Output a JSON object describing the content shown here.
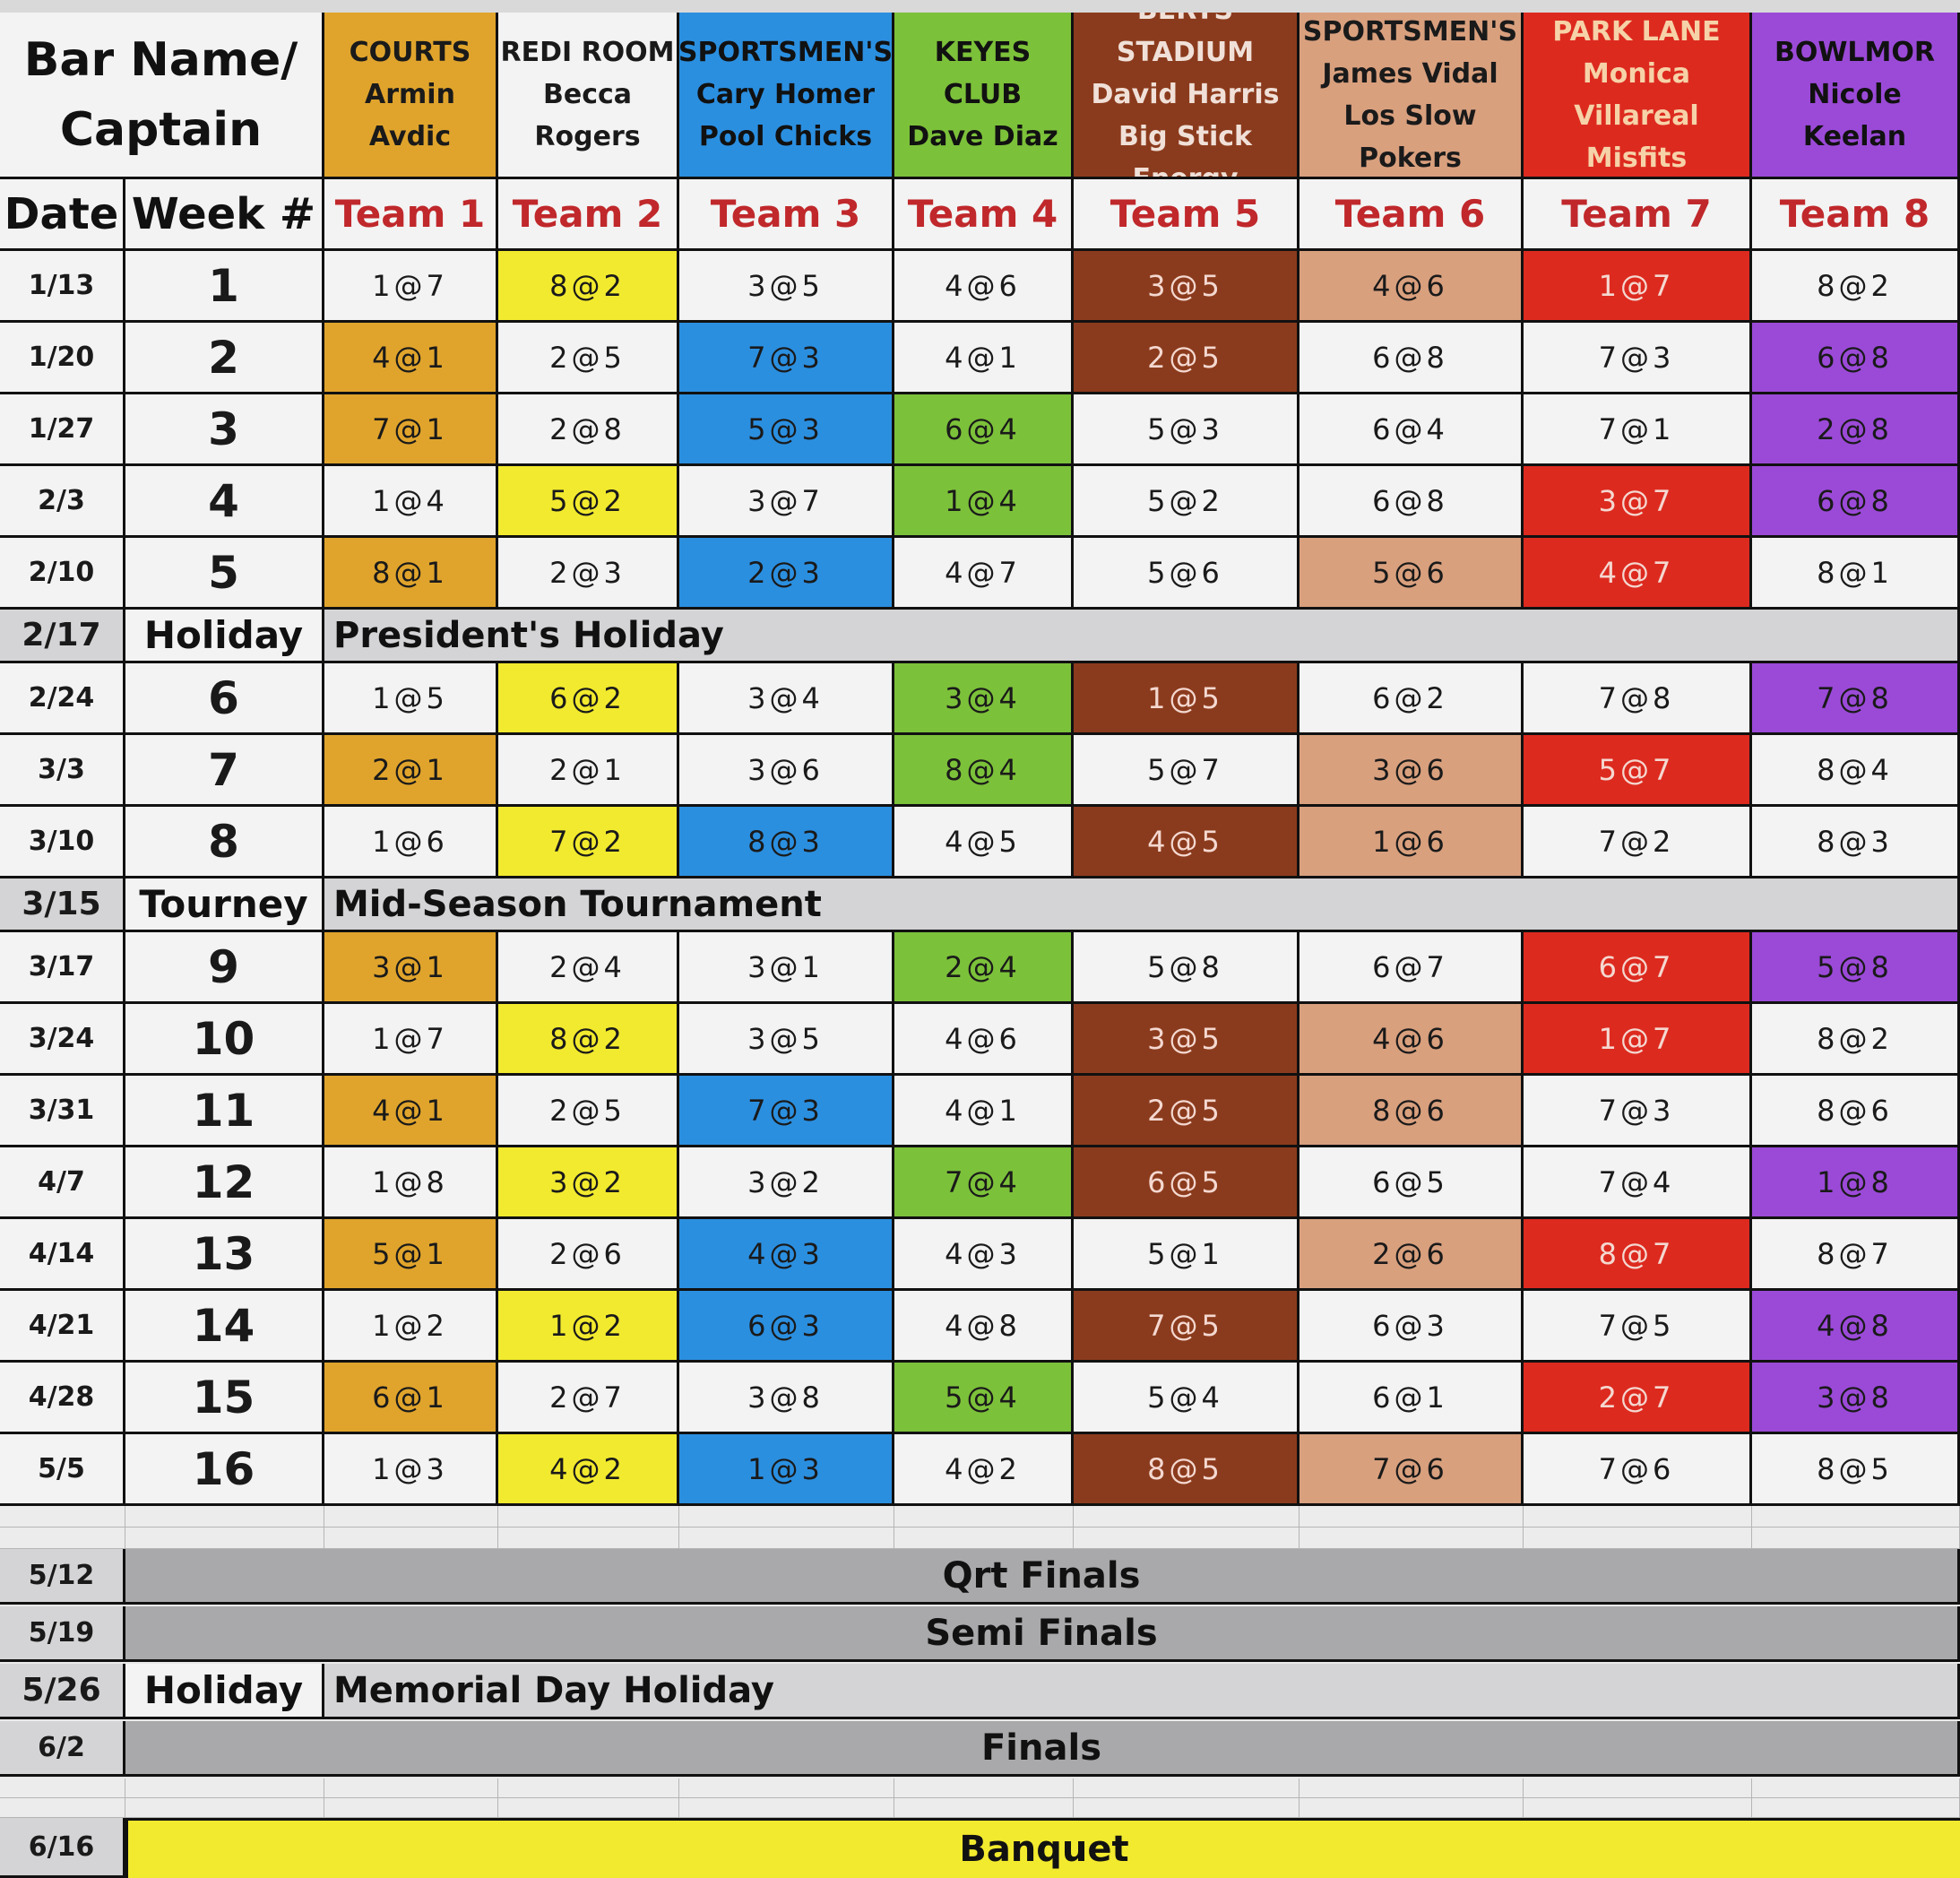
{
  "header": {
    "corner_title_line1": "Bar Name/",
    "corner_title_line2": "Captain",
    "date_label": "Date",
    "week_label": "Week #"
  },
  "teams": [
    {
      "lines": [
        "COURTS",
        "Armin Avdic"
      ],
      "label": "Team 1",
      "header_color": "#e0a42c",
      "header_text_color": "#1a1a1a",
      "cell_color": "#e0a42c"
    },
    {
      "lines": [
        "REDI ROOM",
        "Becca",
        "Rogers"
      ],
      "label": "Team 2",
      "header_color": "#f3f3f3",
      "header_text_color": "#1a1a1a",
      "cell_color": "#f2ea2e"
    },
    {
      "lines": [
        "SPORTSMEN'S",
        "Cary Homer",
        "Pool Chicks"
      ],
      "label": "Team 3",
      "header_color": "#2b8fe0",
      "header_text_color": "#111111",
      "cell_color": "#2b8fe0"
    },
    {
      "lines": [
        "KEYES CLUB",
        "Dave Diaz"
      ],
      "label": "Team 4",
      "header_color": "#7cc13a",
      "header_text_color": "#111111",
      "cell_color": "#7cc13a"
    },
    {
      "lines": [
        "BERTS STADIUM",
        "David Harris",
        "Big Stick Energy"
      ],
      "label": "Team 5",
      "header_color": "#8b3b1d",
      "header_text_color": "#f0e0d8",
      "cell_color": "#8b3b1d"
    },
    {
      "lines": [
        "SPORTSMEN'S",
        "James Vidal",
        "Los Slow Pokers"
      ],
      "label": "Team 6",
      "header_color": "#d9a07e",
      "header_text_color": "#1a1a1a",
      "cell_color": "#d9a07e"
    },
    {
      "lines": [
        "PARK LANE",
        "Monica Villareal",
        "Misfits"
      ],
      "label": "Team 7",
      "header_color": "#dd2a1f",
      "header_text_color": "#f6d2a8",
      "cell_color": "#dd2a1f"
    },
    {
      "lines": [
        "BOWLMOR",
        "Nicole Keelan"
      ],
      "label": "Team 8",
      "header_color": "#9b4ad8",
      "header_text_color": "#111111",
      "cell_color": "#9b4ad8"
    }
  ],
  "rows": [
    {
      "type": "week",
      "date": "1/13",
      "week": "1",
      "cells": [
        "1@7",
        "8@2",
        "3@5",
        "4@6",
        "3@5",
        "4@6",
        "1@7",
        "8@2"
      ],
      "hl": [
        false,
        true,
        false,
        false,
        true,
        true,
        true,
        false
      ]
    },
    {
      "type": "week",
      "date": "1/20",
      "week": "2",
      "cells": [
        "4@1",
        "2@5",
        "7@3",
        "4@1",
        "2@5",
        "6@8",
        "7@3",
        "6@8"
      ],
      "hl": [
        true,
        false,
        true,
        false,
        true,
        false,
        false,
        true
      ]
    },
    {
      "type": "week",
      "date": "1/27",
      "week": "3",
      "cells": [
        "7@1",
        "2@8",
        "5@3",
        "6@4",
        "5@3",
        "6@4",
        "7@1",
        "2@8"
      ],
      "hl": [
        true,
        false,
        true,
        true,
        false,
        false,
        false,
        true
      ]
    },
    {
      "type": "week",
      "date": "2/3",
      "week": "4",
      "cells": [
        "1@4",
        "5@2",
        "3@7",
        "1@4",
        "5@2",
        "6@8",
        "3@7",
        "6@8"
      ],
      "hl": [
        false,
        true,
        false,
        true,
        false,
        false,
        true,
        true
      ]
    },
    {
      "type": "week",
      "date": "2/10",
      "week": "5",
      "cells": [
        "8@1",
        "2@3",
        "2@3",
        "4@7",
        "5@6",
        "5@6",
        "4@7",
        "8@1"
      ],
      "hl": [
        true,
        false,
        true,
        false,
        false,
        true,
        true,
        false
      ]
    },
    {
      "type": "band",
      "date": "2/17",
      "week": "Holiday",
      "label": "President's Holiday"
    },
    {
      "type": "week",
      "date": "2/24",
      "week": "6",
      "cells": [
        "1@5",
        "6@2",
        "3@4",
        "3@4",
        "1@5",
        "6@2",
        "7@8",
        "7@8"
      ],
      "hl": [
        false,
        true,
        false,
        true,
        true,
        false,
        false,
        true
      ]
    },
    {
      "type": "week",
      "date": "3/3",
      "week": "7",
      "cells": [
        "2@1",
        "2@1",
        "3@6",
        "8@4",
        "5@7",
        "3@6",
        "5@7",
        "8@4"
      ],
      "hl": [
        true,
        false,
        false,
        true,
        false,
        true,
        true,
        false
      ]
    },
    {
      "type": "week",
      "date": "3/10",
      "week": "8",
      "cells": [
        "1@6",
        "7@2",
        "8@3",
        "4@5",
        "4@5",
        "1@6",
        "7@2",
        "8@3"
      ],
      "hl": [
        false,
        true,
        true,
        false,
        true,
        true,
        false,
        false
      ]
    },
    {
      "type": "band",
      "date": "3/15",
      "week": "Tourney",
      "label": "Mid-Season Tournament"
    },
    {
      "type": "week",
      "date": "3/17",
      "week": "9",
      "cells": [
        "3@1",
        "2@4",
        "3@1",
        "2@4",
        "5@8",
        "6@7",
        "6@7",
        "5@8"
      ],
      "hl": [
        true,
        false,
        false,
        true,
        false,
        false,
        true,
        true
      ]
    },
    {
      "type": "week",
      "date": "3/24",
      "week": "10",
      "cells": [
        "1@7",
        "8@2",
        "3@5",
        "4@6",
        "3@5",
        "4@6",
        "1@7",
        "8@2"
      ],
      "hl": [
        false,
        true,
        false,
        false,
        true,
        true,
        true,
        false
      ]
    },
    {
      "type": "week",
      "date": "3/31",
      "week": "11",
      "cells": [
        "4@1",
        "2@5",
        "7@3",
        "4@1",
        "2@5",
        "8@6",
        "7@3",
        "8@6"
      ],
      "hl": [
        true,
        false,
        true,
        false,
        true,
        true,
        false,
        false
      ]
    },
    {
      "type": "week",
      "date": "4/7",
      "week": "12",
      "cells": [
        "1@8",
        "3@2",
        "3@2",
        "7@4",
        "6@5",
        "6@5",
        "7@4",
        "1@8"
      ],
      "hl": [
        false,
        true,
        false,
        true,
        true,
        false,
        false,
        true
      ]
    },
    {
      "type": "week",
      "date": "4/14",
      "week": "13",
      "cells": [
        "5@1",
        "2@6",
        "4@3",
        "4@3",
        "5@1",
        "2@6",
        "8@7",
        "8@7"
      ],
      "hl": [
        true,
        false,
        true,
        false,
        false,
        true,
        true,
        false
      ]
    },
    {
      "type": "week",
      "date": "4/21",
      "week": "14",
      "cells": [
        "1@2",
        "1@2",
        "6@3",
        "4@8",
        "7@5",
        "6@3",
        "7@5",
        "4@8"
      ],
      "hl": [
        false,
        true,
        true,
        false,
        true,
        false,
        false,
        true
      ]
    },
    {
      "type": "week",
      "date": "4/28",
      "week": "15",
      "cells": [
        "6@1",
        "2@7",
        "3@8",
        "5@4",
        "5@4",
        "6@1",
        "2@7",
        "3@8"
      ],
      "hl": [
        true,
        false,
        false,
        true,
        false,
        false,
        true,
        true
      ]
    },
    {
      "type": "week",
      "date": "5/5",
      "week": "16",
      "cells": [
        "1@3",
        "4@2",
        "1@3",
        "4@2",
        "8@5",
        "7@6",
        "7@6",
        "8@5"
      ],
      "hl": [
        false,
        true,
        true,
        false,
        true,
        true,
        false,
        false
      ]
    }
  ],
  "postseason": [
    {
      "date": "5/12",
      "label": "Qrt Finals",
      "kind": "gray"
    },
    {
      "date": "5/19",
      "label": "Semi Finals",
      "kind": "gray"
    },
    {
      "date": "5/26",
      "week": "Holiday",
      "label": "Memorial Day Holiday",
      "kind": "holiday"
    },
    {
      "date": "6/2",
      "label": "Finals",
      "kind": "gray"
    },
    {
      "date": "6/16",
      "label": "Banquet",
      "kind": "yellow"
    }
  ],
  "colors": {
    "sheet_background": "#e9e9e9",
    "cell_white": "#f3f3f3",
    "band_gray": "#d4d4d6",
    "final_gray": "#a9a9ab",
    "banquet_yellow": "#f2ea2e",
    "team_header_text": "#c0282b"
  }
}
